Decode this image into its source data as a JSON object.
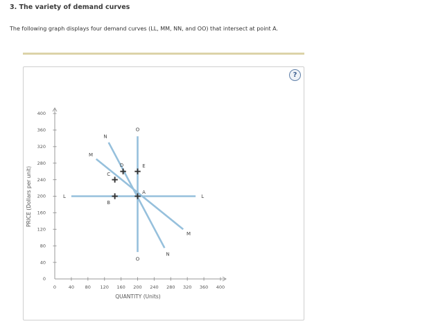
{
  "question": {
    "heading": "3. The variety of demand curves",
    "intro": "The following graph displays four demand curves (LL, MM, NN, and OO) that intersect at point A."
  },
  "help_button": {
    "label": "?",
    "icon": "help-circle-icon"
  },
  "colors": {
    "curve": "#96c0dc",
    "axis": "#999999",
    "text": "#555555",
    "point_marker": "#333333"
  },
  "chart_data": {
    "type": "line",
    "xlabel": "QUANTITY (Units)",
    "ylabel": "PRICE (Dollars per unit)",
    "xlim": [
      0,
      400
    ],
    "ylim": [
      0,
      400
    ],
    "xticks": [
      0,
      40,
      80,
      120,
      160,
      200,
      240,
      280,
      320,
      360,
      400
    ],
    "yticks": [
      0,
      40,
      80,
      120,
      160,
      200,
      240,
      280,
      320,
      360,
      400
    ],
    "grid": false,
    "series": [
      {
        "name": "LL",
        "points": [
          [
            40,
            200
          ],
          [
            340,
            200
          ]
        ],
        "start_label": "L",
        "end_label": "L"
      },
      {
        "name": "MM",
        "points": [
          [
            100,
            290
          ],
          [
            310,
            120
          ]
        ],
        "start_label": "M",
        "end_label": "M"
      },
      {
        "name": "NN",
        "points": [
          [
            130,
            330
          ],
          [
            265,
            75
          ]
        ],
        "start_label": "N",
        "end_label": "N"
      },
      {
        "name": "OO",
        "points": [
          [
            200,
            345
          ],
          [
            200,
            65
          ]
        ],
        "start_label": "O",
        "end_label": "O"
      }
    ],
    "points": [
      {
        "label": "A",
        "x": 200,
        "y": 200
      },
      {
        "label": "B",
        "x": 145,
        "y": 200
      },
      {
        "label": "C",
        "x": 145,
        "y": 240
      },
      {
        "label": "D",
        "x": 165,
        "y": 260
      },
      {
        "label": "E",
        "x": 200,
        "y": 260
      }
    ]
  }
}
